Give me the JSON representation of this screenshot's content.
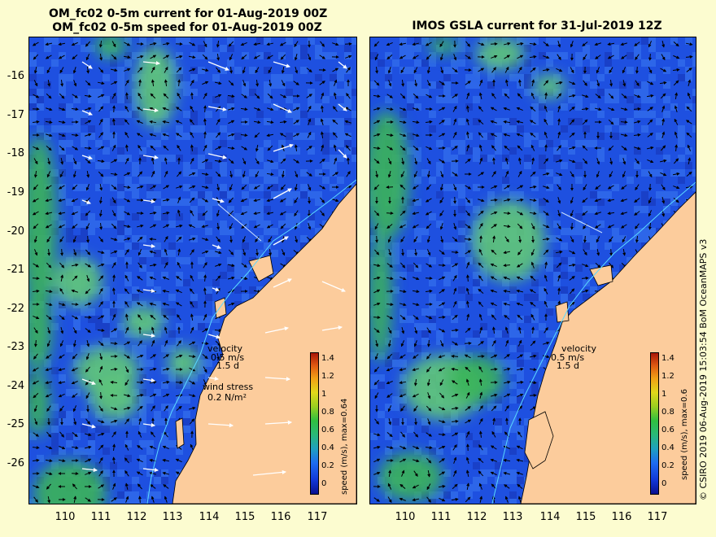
{
  "left_panel": {
    "title_line1": "OM_fc02 0-5m current for 01-Aug-2019 00Z",
    "title_line2": "OM_fc02 0-5m speed for 01-Aug-2019 00Z",
    "colorbar_label": "speed (m/s), max=0.64",
    "velocity_label": "velocity",
    "velocity_scale": "0.5 m/s",
    "velocity_days": "1.5 d",
    "wind_label": "wind stress",
    "wind_scale": "0.2 N/m²"
  },
  "right_panel": {
    "title": "IMOS GSLA current for 31-Jul-2019 12Z",
    "colorbar_label": "speed (m/s), max=0.6",
    "velocity_label": "velocity",
    "velocity_scale": "0.5 m/s",
    "velocity_days": "1.5 d"
  },
  "lat_ticks": [
    "-16",
    "-17",
    "-18",
    "-19",
    "-20",
    "-21",
    "-22",
    "-23",
    "-24",
    "-25",
    "-26"
  ],
  "lon_ticks": [
    "110",
    "111",
    "112",
    "113",
    "114",
    "115",
    "116",
    "117"
  ],
  "colorbar_ticks": [
    "1.4",
    "1.2",
    "1",
    "0.8",
    "0.6",
    "0.4",
    "0.2",
    "0"
  ],
  "credit": "© CSIRO 2019   06-Aug-2019 15:03:54 BoM OceanMAPS v3",
  "colors": {
    "background": "#fcfcd0",
    "land": "#fccc9c",
    "ocean": "#1e50e0",
    "ocean_light": "#3a78f0",
    "eddy": "#3cb45a",
    "eddy_light": "#60c878"
  },
  "icons": [
    "current-arrow-icon",
    "wind-arrow-icon"
  ]
}
